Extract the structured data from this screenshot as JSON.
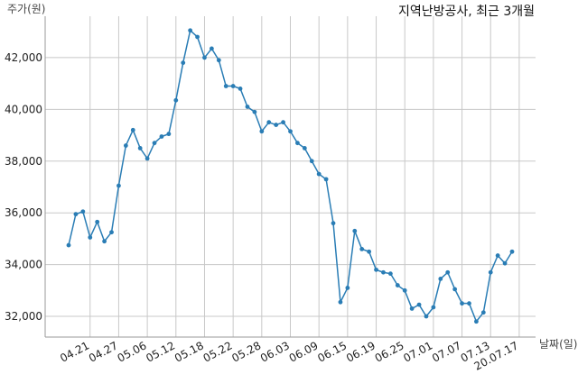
{
  "chart_data": {
    "type": "line",
    "title": "지역난방공사, 최근 3개월",
    "ylabel": "주가(원)",
    "xlabel": "날짜(일)",
    "ylim": [
      31200,
      43600
    ],
    "yticks": [
      32000,
      34000,
      36000,
      38000,
      40000,
      42000
    ],
    "ytick_labels": [
      "32,000",
      "34,000",
      "36,000",
      "38,000",
      "40,000",
      "42,000"
    ],
    "grid": true,
    "color": "#2a7db5",
    "xtick_positions": [
      3,
      7,
      11,
      15,
      19,
      23,
      27,
      31,
      35,
      39,
      43,
      47,
      51,
      55,
      59,
      63
    ],
    "xtick_labels": [
      "04.21",
      "04.27",
      "05.06",
      "05.12",
      "05.18",
      "05.22",
      "05.28",
      "06.03",
      "06.09",
      "06.15",
      "06.19",
      "06.25",
      "07.01",
      "07.07",
      "07.13",
      "20.07.17"
    ],
    "values": [
      34750,
      35950,
      36050,
      35050,
      35650,
      34900,
      35250,
      37050,
      38600,
      39200,
      38500,
      38100,
      38700,
      38950,
      39050,
      40350,
      41800,
      43050,
      42800,
      42000,
      42350,
      41900,
      40900,
      40900,
      40800,
      40100,
      39900,
      39150,
      39500,
      39400,
      39500,
      39150,
      38700,
      38500,
      38000,
      37500,
      37300,
      35600,
      32550,
      33100,
      35300,
      34600,
      34500,
      33800,
      33700,
      33650,
      33200,
      33000,
      32300,
      32450,
      32000,
      32350,
      33450,
      33700,
      33050,
      32500,
      32500,
      31800,
      32150,
      33700,
      34350,
      34050,
      34500
    ]
  }
}
